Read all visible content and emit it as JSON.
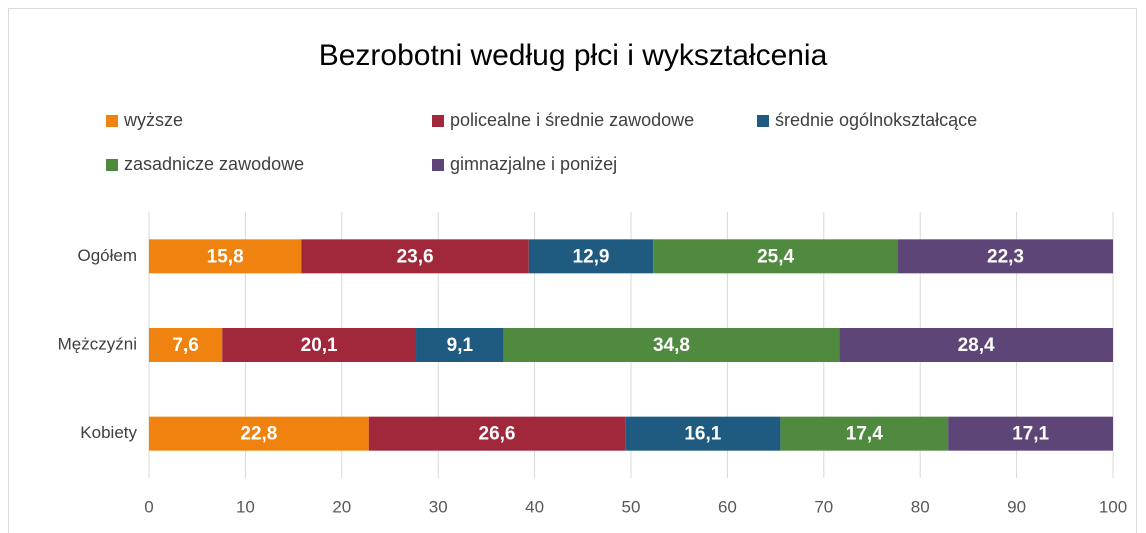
{
  "chart_data": {
    "type": "bar",
    "stacked": true,
    "title": "Bezrobotni według płci i wykształcenia",
    "categories": [
      "Ogółem",
      "Mężczyźni",
      "Kobiety"
    ],
    "series": [
      {
        "name": "wyższe",
        "color": "#f0820f",
        "values": [
          15.8,
          7.6,
          22.8
        ],
        "value_labels": [
          "15,8",
          "7,6",
          "22,8"
        ]
      },
      {
        "name": "policealne i średnie zawodowe",
        "color": "#a1283a",
        "values": [
          23.6,
          20.1,
          26.6
        ],
        "value_labels": [
          "23,6",
          "20,1",
          "26,6"
        ]
      },
      {
        "name": "średnie ogólnokształcące",
        "color": "#1f5a80",
        "values": [
          12.9,
          9.1,
          16.1
        ],
        "value_labels": [
          "12,9",
          "9,1",
          "16,1"
        ]
      },
      {
        "name": "zasadnicze zawodowe",
        "color": "#4f8a3e",
        "values": [
          25.4,
          34.8,
          17.4
        ],
        "value_labels": [
          "25,4",
          "34,8",
          "17,4"
        ]
      },
      {
        "name": "gimnazjalne i poniżej",
        "color": "#5e4578",
        "values": [
          22.3,
          28.4,
          17.1
        ],
        "value_labels": [
          "22,3",
          "28,4",
          "17,1"
        ]
      }
    ],
    "xlim": [
      0,
      100
    ],
    "xticks": [
      0,
      10,
      20,
      30,
      40,
      50,
      60,
      70,
      80,
      90,
      100
    ],
    "grid": true
  }
}
